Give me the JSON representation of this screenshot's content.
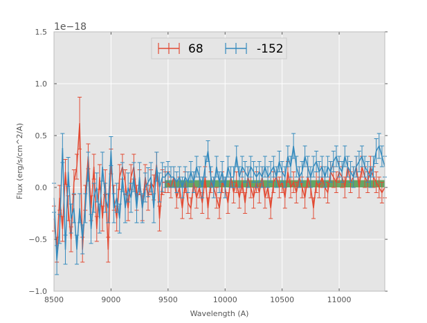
{
  "chart_data": {
    "type": "line",
    "title": "",
    "xlabel": "Wavelength (A)",
    "ylabel": "Flux (erg/s/cm^2/A)",
    "y_offset_label": "1e−18",
    "xlim": [
      8500,
      11400
    ],
    "ylim": [
      -1.0,
      1.5
    ],
    "xticks": [
      8500,
      9000,
      9500,
      10000,
      10500,
      11000
    ],
    "xtick_labels": [
      "8500",
      "9000",
      "9500",
      "10000",
      "10500",
      "11000"
    ],
    "yticks": [
      -1.0,
      -0.5,
      0.0,
      0.5,
      1.0,
      1.5
    ],
    "ytick_labels": [
      "−1.0",
      "−0.5",
      "0.0",
      "0.5",
      "1.0",
      "1.5"
    ],
    "grid": true,
    "legend_position": "top-center",
    "x": [
      8500,
      8525,
      8550,
      8575,
      8600,
      8625,
      8650,
      8675,
      8700,
      8725,
      8750,
      8775,
      8800,
      8825,
      8850,
      8875,
      8900,
      8925,
      8950,
      8975,
      9000,
      9025,
      9050,
      9075,
      9100,
      9125,
      9150,
      9175,
      9200,
      9225,
      9250,
      9275,
      9300,
      9325,
      9350,
      9375,
      9400,
      9425,
      9450,
      9475,
      9500,
      9525,
      9550,
      9575,
      9600,
      9625,
      9650,
      9675,
      9700,
      9725,
      9750,
      9775,
      9800,
      9825,
      9850,
      9875,
      9900,
      9925,
      9950,
      9975,
      10000,
      10025,
      10050,
      10075,
      10100,
      10125,
      10150,
      10175,
      10200,
      10225,
      10250,
      10275,
      10300,
      10325,
      10350,
      10375,
      10400,
      10425,
      10450,
      10475,
      10500,
      10525,
      10550,
      10575,
      10600,
      10625,
      10650,
      10675,
      10700,
      10725,
      10750,
      10775,
      10800,
      10825,
      10850,
      10875,
      10900,
      10925,
      10950,
      10975,
      11000,
      11025,
      11050,
      11075,
      11100,
      11125,
      11150,
      11175,
      11200,
      11225,
      11250,
      11275,
      11300,
      11325,
      11350,
      11375,
      11400
    ],
    "series": [
      {
        "name": "68",
        "color": "#E24A33",
        "values": [
          -0.3,
          -0.6,
          -0.1,
          -0.4,
          0.15,
          -0.2,
          -0.5,
          0.05,
          0.2,
          0.62,
          -0.6,
          -0.1,
          0.3,
          -0.2,
          0.2,
          -0.4,
          0.1,
          -0.3,
          0.05,
          -0.6,
          0.25,
          -0.1,
          -0.3,
          0.1,
          0.2,
          0.05,
          -0.2,
          0.1,
          0.2,
          -0.1,
          0.05,
          -0.2,
          0.1,
          -0.1,
          0.05,
          0.0,
          0.22,
          -0.3,
          0.05,
          0.05,
          0.05,
          0.0,
          0.1,
          -0.1,
          0.0,
          -0.2,
          0.05,
          -0.15,
          -0.2,
          0.05,
          -0.1,
          0.0,
          -0.15,
          0.1,
          -0.2,
          0.05,
          0.0,
          -0.1,
          -0.2,
          0.05,
          0.0,
          -0.15,
          0.1,
          -0.05,
          0.05,
          -0.1,
          0.05,
          -0.15,
          0.1,
          0.0,
          -0.1,
          0.05,
          -0.05,
          0.1,
          -0.1,
          0.0,
          -0.2,
          0.05,
          0.1,
          0.0,
          0.05,
          -0.1,
          0.15,
          0.0,
          0.05,
          -0.05,
          0.1,
          0.0,
          -0.1,
          0.1,
          0.0,
          -0.2,
          0.05,
          0.0,
          0.1,
          0.0,
          -0.05,
          0.15,
          0.1,
          0.05,
          0.15,
          0.1,
          0.0,
          0.2,
          0.05,
          0.1,
          0.2,
          0.0,
          0.2,
          0.1,
          0.05,
          0.2,
          0.1,
          0.05,
          0.0,
          -0.05,
          0.0
        ],
        "errors": [
          0.12,
          0.12,
          0.12,
          0.12,
          0.12,
          0.12,
          0.12,
          0.12,
          0.12,
          0.25,
          0.12,
          0.12,
          0.12,
          0.12,
          0.12,
          0.12,
          0.12,
          0.12,
          0.12,
          0.12,
          0.12,
          0.12,
          0.12,
          0.12,
          0.12,
          0.12,
          0.12,
          0.12,
          0.12,
          0.12,
          0.12,
          0.12,
          0.12,
          0.12,
          0.12,
          0.12,
          0.12,
          0.12,
          0.12,
          0.1,
          0.1,
          0.1,
          0.1,
          0.1,
          0.1,
          0.1,
          0.1,
          0.1,
          0.1,
          0.1,
          0.1,
          0.1,
          0.1,
          0.1,
          0.1,
          0.1,
          0.1,
          0.1,
          0.1,
          0.1,
          0.1,
          0.1,
          0.1,
          0.1,
          0.1,
          0.1,
          0.1,
          0.1,
          0.1,
          0.1,
          0.1,
          0.1,
          0.1,
          0.1,
          0.1,
          0.1,
          0.1,
          0.1,
          0.1,
          0.1,
          0.1,
          0.1,
          0.1,
          0.1,
          0.1,
          0.1,
          0.1,
          0.1,
          0.1,
          0.1,
          0.1,
          0.1,
          0.1,
          0.1,
          0.1,
          0.1,
          0.1,
          0.1,
          0.1,
          0.1,
          0.1,
          0.1,
          0.1,
          0.1,
          0.1,
          0.1,
          0.1,
          0.1,
          0.1,
          0.1,
          0.1,
          0.1,
          0.1,
          0.1,
          0.1,
          0.1,
          0.1
        ]
      },
      {
        "name": "-152",
        "color": "#348ABD",
        "values": [
          -0.1,
          -0.7,
          -0.4,
          0.38,
          -0.6,
          0.15,
          -0.3,
          -0.2,
          -0.6,
          -0.2,
          -0.5,
          -0.2,
          0.2,
          -0.4,
          -0.1,
          0.0,
          -0.3,
          0.2,
          -0.1,
          -0.2,
          0.35,
          -0.2,
          -0.1,
          -0.3,
          0.1,
          -0.2,
          0.0,
          -0.1,
          0.1,
          -0.2,
          0.1,
          -0.2,
          0.0,
          0.05,
          0.1,
          -0.2,
          0.2,
          0.0,
          0.1,
          0.1,
          0.15,
          0.1,
          0.1,
          0.05,
          0.1,
          0.0,
          0.1,
          0.05,
          0.15,
          0.05,
          0.2,
          0.1,
          0.0,
          0.2,
          0.35,
          0.1,
          0.0,
          0.2,
          0.05,
          0.15,
          0.0,
          0.2,
          0.1,
          0.1,
          0.3,
          0.1,
          0.2,
          0.15,
          0.1,
          0.2,
          0.15,
          0.1,
          0.15,
          0.1,
          0.2,
          0.1,
          0.15,
          0.2,
          0.1,
          0.25,
          0.15,
          0.1,
          0.3,
          0.2,
          0.4,
          0.2,
          0.1,
          0.15,
          0.3,
          0.2,
          0.1,
          0.2,
          0.25,
          0.15,
          0.2,
          0.1,
          0.2,
          0.15,
          0.25,
          0.3,
          0.2,
          0.15,
          0.3,
          0.2,
          0.15,
          0.1,
          0.2,
          0.25,
          0.3,
          0.2,
          0.15,
          0.1,
          0.2,
          0.35,
          0.4,
          0.3,
          0.2
        ],
        "errors": [
          0.14,
          0.14,
          0.14,
          0.14,
          0.14,
          0.14,
          0.14,
          0.14,
          0.14,
          0.14,
          0.14,
          0.14,
          0.14,
          0.14,
          0.14,
          0.14,
          0.14,
          0.14,
          0.14,
          0.14,
          0.14,
          0.14,
          0.14,
          0.14,
          0.14,
          0.14,
          0.14,
          0.14,
          0.14,
          0.14,
          0.14,
          0.14,
          0.14,
          0.14,
          0.14,
          0.14,
          0.14,
          0.14,
          0.14,
          0.1,
          0.1,
          0.1,
          0.1,
          0.1,
          0.1,
          0.1,
          0.1,
          0.1,
          0.1,
          0.1,
          0.1,
          0.1,
          0.1,
          0.1,
          0.1,
          0.1,
          0.1,
          0.1,
          0.1,
          0.1,
          0.1,
          0.1,
          0.1,
          0.1,
          0.1,
          0.1,
          0.1,
          0.1,
          0.1,
          0.1,
          0.1,
          0.1,
          0.1,
          0.1,
          0.1,
          0.1,
          0.1,
          0.1,
          0.1,
          0.1,
          0.1,
          0.1,
          0.1,
          0.1,
          0.12,
          0.1,
          0.1,
          0.1,
          0.1,
          0.1,
          0.1,
          0.1,
          0.1,
          0.1,
          0.1,
          0.1,
          0.1,
          0.1,
          0.1,
          0.1,
          0.1,
          0.1,
          0.1,
          0.1,
          0.1,
          0.1,
          0.1,
          0.1,
          0.1,
          0.1,
          0.1,
          0.1,
          0.1,
          0.12,
          0.12,
          0.1,
          0.1
        ]
      }
    ],
    "shaded_band": {
      "x_range": [
        9470,
        11400
      ],
      "y_range": [
        0.0,
        0.07
      ],
      "color": "#2E8B2E"
    }
  }
}
